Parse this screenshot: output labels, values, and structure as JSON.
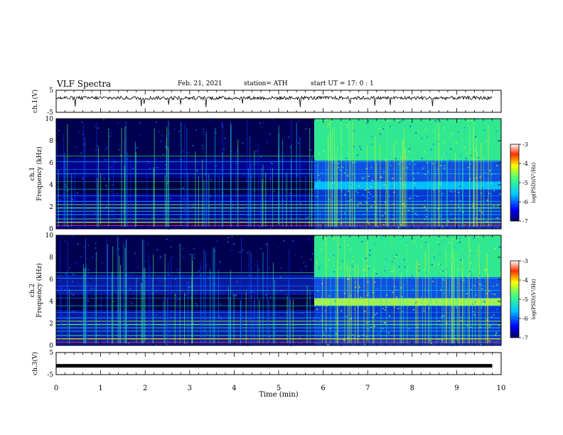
{
  "header": {
    "title": "VLF Spectra",
    "date": "Feb. 21, 2021",
    "station": "station= ATH",
    "start": "start  UT  =   17: 0  : 1"
  },
  "chart_data": [
    {
      "type": "line",
      "panel": "ch1-waveform",
      "ylabel": "ch.1(V)",
      "ylim": [
        -5,
        5
      ],
      "yticks": [
        "5",
        "-5"
      ],
      "description_of_series": "noisy waveform near +1.5 V with occasional negative spikes"
    },
    {
      "type": "heatmap",
      "panel": "ch1-spectrogram",
      "ylabel_line1": "ch.1",
      "ylabel_line2": "Frequency  (kHz)",
      "ylim": [
        0,
        10
      ],
      "yticks": [
        "0",
        "2",
        "4",
        "6",
        "8",
        "10"
      ],
      "xlim": [
        0,
        10
      ],
      "transition_time_min": 5.8,
      "colorbar": {
        "label": "log(PSD)(V²/Hz)",
        "range": [
          -7,
          -3
        ],
        "ticks": [
          "-3",
          "-4",
          "-5",
          "-6",
          "-7"
        ]
      }
    },
    {
      "type": "heatmap",
      "panel": "ch2-spectrogram",
      "ylabel_line1": "ch.2",
      "ylabel_line2": "Frequency  (kHz)",
      "ylim": [
        0,
        10
      ],
      "yticks": [
        "0",
        "2",
        "4",
        "6",
        "8",
        "10"
      ],
      "xlim": [
        0,
        10
      ],
      "transition_time_min": 5.8,
      "colorbar": {
        "label": "log(PSD)(V²/Hz)",
        "range": [
          -7,
          -3
        ],
        "ticks": [
          "-3",
          "-4",
          "-5",
          "-6",
          "-7"
        ]
      }
    },
    {
      "type": "line",
      "panel": "ch3-waveform",
      "ylabel": "ch.3(V)",
      "ylim": [
        -5,
        5
      ],
      "yticks": [
        "5",
        "-5"
      ],
      "x": [
        0,
        9.8
      ],
      "values": [
        -1,
        -1
      ]
    }
  ],
  "xaxis": {
    "label": "Time  (min)",
    "range": [
      0,
      10
    ],
    "ticks": [
      "0",
      "1",
      "2",
      "3",
      "4",
      "5",
      "6",
      "7",
      "8",
      "9",
      "10"
    ]
  }
}
